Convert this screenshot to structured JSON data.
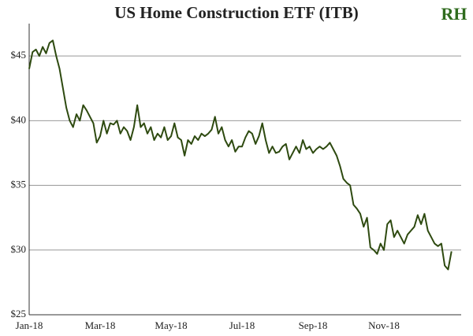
{
  "chart_data": {
    "type": "line",
    "title": "US Home Construction ETF (ITB)",
    "logo": "RH",
    "categories": [
      "Jan-18",
      null,
      null,
      null,
      null,
      null,
      null,
      null,
      null,
      null,
      null,
      null,
      null,
      null,
      null,
      null,
      null,
      null,
      null,
      null,
      null,
      "Mar-18",
      null,
      null,
      null,
      null,
      null,
      null,
      null,
      null,
      null,
      null,
      null,
      null,
      null,
      null,
      null,
      null,
      null,
      null,
      null,
      null,
      "May-18",
      null,
      null,
      null,
      null,
      null,
      null,
      null,
      null,
      null,
      null,
      null,
      null,
      null,
      null,
      null,
      null,
      null,
      null,
      null,
      null,
      "Jul-18",
      null,
      null,
      null,
      null,
      null,
      null,
      null,
      null,
      null,
      null,
      null,
      null,
      null,
      null,
      null,
      null,
      null,
      null,
      null,
      null,
      "Sep-18",
      null,
      null,
      null,
      null,
      null,
      null,
      null,
      null,
      null,
      null,
      null,
      null,
      null,
      null,
      null,
      null,
      null,
      null,
      null,
      null,
      "Nov-18",
      null,
      null,
      null,
      null,
      null,
      null,
      null,
      null,
      null,
      null,
      null,
      null,
      null,
      null,
      null,
      null,
      null,
      null,
      null,
      null
    ],
    "values": [
      44.0,
      45.3,
      45.5,
      45.0,
      45.7,
      45.2,
      46.0,
      46.2,
      45.0,
      44.0,
      42.5,
      41.0,
      40.0,
      39.5,
      40.5,
      40.0,
      41.2,
      40.8,
      40.3,
      39.8,
      38.3,
      38.8,
      40.0,
      39.0,
      39.8,
      39.7,
      40.0,
      39.0,
      39.5,
      39.2,
      38.5,
      39.5,
      41.2,
      39.5,
      39.8,
      39.0,
      39.5,
      38.5,
      39.0,
      38.7,
      39.5,
      38.5,
      38.8,
      39.8,
      38.7,
      38.5,
      37.3,
      38.5,
      38.2,
      38.8,
      38.5,
      39.0,
      38.8,
      39.0,
      39.3,
      40.3,
      39.0,
      39.5,
      38.5,
      38.0,
      38.5,
      37.6,
      38.0,
      38.0,
      38.7,
      39.2,
      39.0,
      38.2,
      38.8,
      39.8,
      38.5,
      37.5,
      38.0,
      37.5,
      37.6,
      38.0,
      38.2,
      37.0,
      37.5,
      38.0,
      37.5,
      38.5,
      37.8,
      38.0,
      37.5,
      37.8,
      38.0,
      37.8,
      38.0,
      38.3,
      37.8,
      37.3,
      36.5,
      35.5,
      35.2,
      35.0,
      33.5,
      33.2,
      32.8,
      31.8,
      32.5,
      30.2,
      30.0,
      29.7,
      30.5,
      30.0,
      32.0,
      32.3,
      31.0,
      31.5,
      31.0,
      30.5,
      31.2,
      31.5,
      31.8,
      32.7,
      32.0,
      32.8,
      31.5,
      31.0,
      30.5,
      30.3,
      30.5,
      28.8,
      28.5,
      29.9
    ],
    "color": "#2e4a10",
    "ylim": [
      25,
      47.5
    ],
    "yticks": [
      {
        "value": 25,
        "label": "$25"
      },
      {
        "value": 30,
        "label": "$30"
      },
      {
        "value": 35,
        "label": "$35"
      },
      {
        "value": 40,
        "label": "$40"
      },
      {
        "value": 45,
        "label": "$45"
      }
    ],
    "grid": true
  }
}
